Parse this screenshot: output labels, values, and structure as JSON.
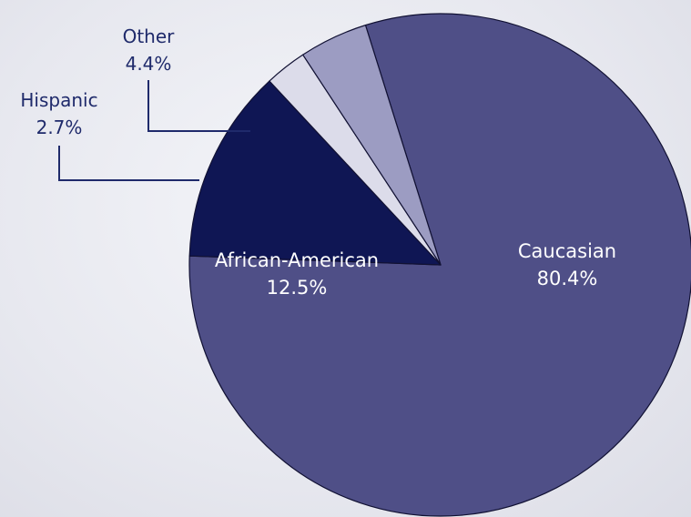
{
  "chart_data": {
    "type": "pie",
    "title": "",
    "slices": [
      {
        "label": "Caucasian",
        "value": 80.4,
        "value_label": "80.4%",
        "color": "#4f4f87",
        "text_color": "#ffffff"
      },
      {
        "label": "African-American",
        "value": 12.5,
        "value_label": "12.5%",
        "color": "#0f1654",
        "text_color": "#ffffff"
      },
      {
        "label": "Hispanic",
        "value": 2.7,
        "value_label": "2.7%",
        "color": "#dcdcea",
        "text_color": "#1f2a6b"
      },
      {
        "label": "Other",
        "value": 4.4,
        "value_label": "4.4%",
        "color": "#9c9cc2",
        "text_color": "#1f2a6b"
      }
    ],
    "legend": "none",
    "callout_line_color": "#1f2a6b"
  }
}
